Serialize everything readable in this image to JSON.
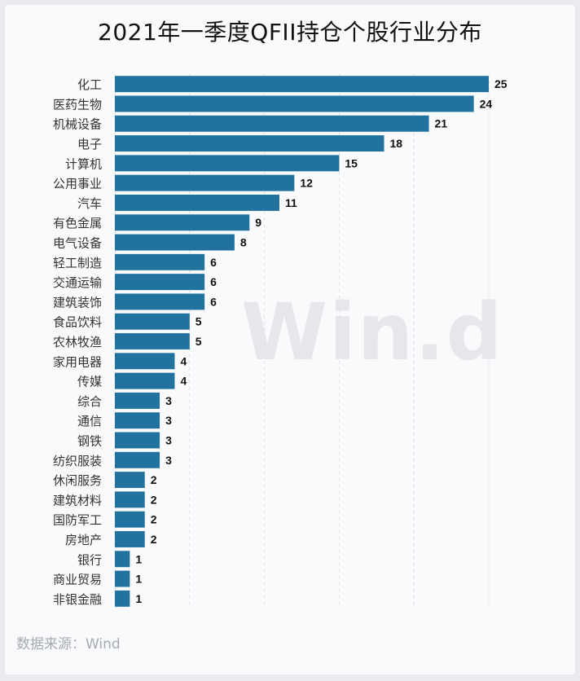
{
  "title": "2021年一季度QFII持仓个股行业分布",
  "source": "数据来源：Wind",
  "watermark": "Win.d",
  "colors": {
    "bar": "#21729f",
    "label": "#333333",
    "value": "#111111",
    "grid": "#dcdfe4"
  },
  "chart_data": {
    "type": "bar",
    "orientation": "horizontal",
    "title": "2021年一季度QFII持仓个股行业分布",
    "xlabel": "",
    "ylabel": "",
    "xlim": [
      0,
      25
    ],
    "grid": true,
    "categories": [
      "化工",
      "医药生物",
      "机械设备",
      "电子",
      "计算机",
      "公用事业",
      "汽车",
      "有色金属",
      "电气设备",
      "轻工制造",
      "交通运输",
      "建筑装饰",
      "食品饮料",
      "农林牧渔",
      "家用电器",
      "传媒",
      "综合",
      "通信",
      "钢铁",
      "纺织服装",
      "休闲服务",
      "建筑材料",
      "国防军工",
      "房地产",
      "银行",
      "商业贸易",
      "非银金融"
    ],
    "values": [
      25,
      24,
      21,
      18,
      15,
      12,
      11,
      9,
      8,
      6,
      6,
      6,
      5,
      5,
      4,
      4,
      3,
      3,
      3,
      3,
      2,
      2,
      2,
      2,
      1,
      1,
      1
    ]
  }
}
